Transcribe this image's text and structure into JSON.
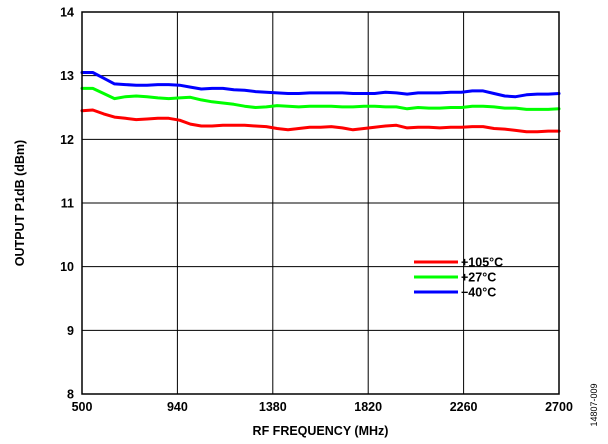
{
  "chart_data": {
    "type": "line",
    "xlabel": "RF FREQUENCY (MHz)",
    "ylabel": "OUTPUT P1dB (dBm)",
    "xlim": [
      500,
      2700
    ],
    "ylim": [
      8,
      14
    ],
    "x_ticks": [
      500,
      940,
      1380,
      1820,
      2260,
      2700
    ],
    "y_ticks": [
      8,
      9,
      10,
      11,
      12,
      13,
      14
    ],
    "grid": true,
    "legend_position": "bottom-right",
    "figure_id": "14807-009",
    "series": [
      {
        "name": "+105°C",
        "color": "#ff0000",
        "x": [
          500,
          550,
          600,
          650,
          700,
          750,
          800,
          850,
          900,
          950,
          1000,
          1050,
          1100,
          1150,
          1200,
          1250,
          1300,
          1350,
          1400,
          1450,
          1500,
          1550,
          1600,
          1650,
          1700,
          1750,
          1800,
          1850,
          1900,
          1950,
          2000,
          2050,
          2100,
          2150,
          2200,
          2250,
          2300,
          2350,
          2400,
          2450,
          2500,
          2550,
          2600,
          2650,
          2700
        ],
        "values": [
          12.45,
          12.46,
          12.4,
          12.35,
          12.33,
          12.31,
          12.32,
          12.33,
          12.33,
          12.3,
          12.24,
          12.21,
          12.21,
          12.22,
          12.22,
          12.22,
          12.21,
          12.2,
          12.17,
          12.15,
          12.17,
          12.19,
          12.19,
          12.2,
          12.18,
          12.15,
          12.17,
          12.19,
          12.21,
          12.22,
          12.18,
          12.19,
          12.19,
          12.18,
          12.19,
          12.19,
          12.2,
          12.2,
          12.17,
          12.16,
          12.14,
          12.12,
          12.12,
          12.13,
          12.13
        ]
      },
      {
        "name": "+27°C",
        "color": "#00ff00",
        "x": [
          500,
          550,
          600,
          650,
          700,
          750,
          800,
          850,
          900,
          950,
          1000,
          1050,
          1100,
          1150,
          1200,
          1250,
          1300,
          1350,
          1400,
          1450,
          1500,
          1550,
          1600,
          1650,
          1700,
          1750,
          1800,
          1850,
          1900,
          1950,
          2000,
          2050,
          2100,
          2150,
          2200,
          2250,
          2300,
          2350,
          2400,
          2450,
          2500,
          2550,
          2600,
          2650,
          2700
        ],
        "values": [
          12.8,
          12.8,
          12.72,
          12.64,
          12.67,
          12.68,
          12.67,
          12.65,
          12.64,
          12.65,
          12.66,
          12.62,
          12.59,
          12.57,
          12.55,
          12.52,
          12.5,
          12.51,
          12.53,
          12.52,
          12.51,
          12.52,
          12.52,
          12.52,
          12.51,
          12.51,
          12.52,
          12.52,
          12.51,
          12.51,
          12.48,
          12.5,
          12.49,
          12.49,
          12.5,
          12.5,
          12.52,
          12.52,
          12.51,
          12.49,
          12.49,
          12.47,
          12.47,
          12.47,
          12.48
        ]
      },
      {
        "name": "−40°C",
        "color": "#0000ff",
        "x": [
          500,
          550,
          600,
          650,
          700,
          750,
          800,
          850,
          900,
          950,
          1000,
          1050,
          1100,
          1150,
          1200,
          1250,
          1300,
          1350,
          1400,
          1450,
          1500,
          1550,
          1600,
          1650,
          1700,
          1750,
          1800,
          1850,
          1900,
          1950,
          2000,
          2050,
          2100,
          2150,
          2200,
          2250,
          2300,
          2350,
          2400,
          2450,
          2500,
          2550,
          2600,
          2650,
          2700
        ],
        "values": [
          13.05,
          13.05,
          12.96,
          12.87,
          12.86,
          12.85,
          12.85,
          12.86,
          12.86,
          12.85,
          12.82,
          12.79,
          12.8,
          12.8,
          12.78,
          12.77,
          12.75,
          12.74,
          12.73,
          12.72,
          12.72,
          12.73,
          12.73,
          12.73,
          12.73,
          12.72,
          12.72,
          12.72,
          12.74,
          12.73,
          12.71,
          12.73,
          12.73,
          12.73,
          12.74,
          12.74,
          12.76,
          12.76,
          12.72,
          12.68,
          12.67,
          12.7,
          12.71,
          12.71,
          12.72
        ]
      }
    ]
  }
}
